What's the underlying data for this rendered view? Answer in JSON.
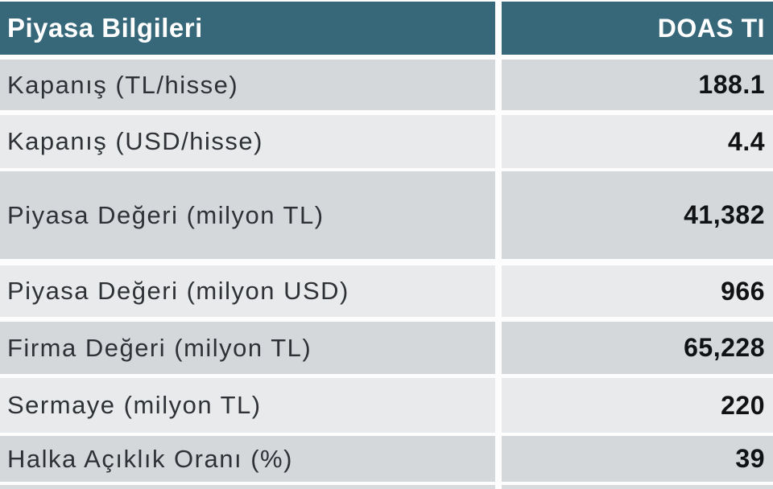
{
  "table": {
    "header": {
      "title": "Piyasa Bilgileri",
      "ticker": "DOAS TI"
    },
    "rows": [
      {
        "label": "Kapanış (TL/hisse)",
        "value": "188.1"
      },
      {
        "label": "Kapanış (USD/hisse)",
        "value": "4.4"
      },
      {
        "label": "Piyasa Değeri (milyon TL)",
        "value": "41,382"
      },
      {
        "label": "Piyasa Değeri (milyon USD)",
        "value": "966"
      },
      {
        "label": "Firma Değeri (milyon TL)",
        "value": "65,228"
      },
      {
        "label": "Sermaye (milyon TL)",
        "value": "220"
      },
      {
        "label": "Halka Açıklık Oranı (%)",
        "value": "39"
      }
    ],
    "colors": {
      "header_bg": "#376879",
      "header_text": "#ffffff",
      "row_medium_bg": "#d4d8db",
      "row_light_bg": "#e9eaeb",
      "label_text": "#2e3236",
      "value_text": "#111213",
      "separator": "#fdfdfd"
    }
  },
  "chart_data": {
    "type": "table",
    "title": "Piyasa Bilgileri",
    "columns": [
      "Piyasa Bilgileri",
      "DOAS TI"
    ],
    "rows": [
      [
        "Kapanış (TL/hisse)",
        "188.1"
      ],
      [
        "Kapanış (USD/hisse)",
        "4.4"
      ],
      [
        "Piyasa Değeri (milyon TL)",
        "41,382"
      ],
      [
        "Piyasa Değeri (milyon USD)",
        "966"
      ],
      [
        "Firma Değeri (milyon TL)",
        "65,228"
      ],
      [
        "Sermaye (milyon TL)",
        "220"
      ],
      [
        "Halka Açıklık Oranı (%)",
        "39"
      ]
    ]
  }
}
